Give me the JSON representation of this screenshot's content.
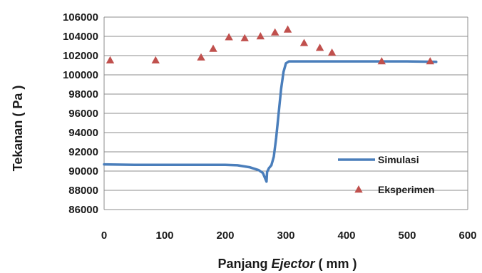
{
  "chart_data": {
    "type": "line",
    "xlabel_parts": [
      "Panjang ",
      "Ejector",
      " ( mm )"
    ],
    "ylabel": "Tekanan ( Pa )",
    "xlim": [
      0,
      600
    ],
    "ylim": [
      86000,
      106000
    ],
    "x_ticks": [
      "0",
      "100",
      "200",
      "300",
      "400",
      "500",
      "600"
    ],
    "y_ticks": [
      "86000",
      "88000",
      "90000",
      "92000",
      "94000",
      "96000",
      "98000",
      "100000",
      "102000",
      "104000",
      "106000"
    ],
    "grid": "horizontal",
    "legend_position": "right",
    "series": [
      {
        "name": "Simulasi",
        "marker": "line",
        "color": "#4a7ebb",
        "points": [
          [
            0,
            90700
          ],
          [
            50,
            90650
          ],
          [
            100,
            90650
          ],
          [
            150,
            90650
          ],
          [
            200,
            90650
          ],
          [
            220,
            90600
          ],
          [
            240,
            90400
          ],
          [
            255,
            90100
          ],
          [
            262,
            89800
          ],
          [
            266,
            89200
          ],
          [
            268,
            88900
          ],
          [
            269,
            89900
          ],
          [
            272,
            90300
          ],
          [
            276,
            90600
          ],
          [
            280,
            91500
          ],
          [
            284,
            93500
          ],
          [
            288,
            96000
          ],
          [
            292,
            98500
          ],
          [
            296,
            100300
          ],
          [
            300,
            101200
          ],
          [
            305,
            101400
          ],
          [
            350,
            101400
          ],
          [
            400,
            101400
          ],
          [
            450,
            101400
          ],
          [
            500,
            101400
          ],
          [
            548,
            101350
          ]
        ]
      },
      {
        "name": "Eksperimen",
        "marker": "triangle",
        "color": "#c0504d",
        "points": [
          [
            10,
            101500
          ],
          [
            85,
            101500
          ],
          [
            160,
            101800
          ],
          [
            180,
            102700
          ],
          [
            206,
            103900
          ],
          [
            232,
            103800
          ],
          [
            258,
            104000
          ],
          [
            282,
            104400
          ],
          [
            303,
            104700
          ],
          [
            330,
            103300
          ],
          [
            356,
            102800
          ],
          [
            376,
            102300
          ],
          [
            458,
            101400
          ],
          [
            538,
            101400
          ]
        ]
      }
    ]
  }
}
